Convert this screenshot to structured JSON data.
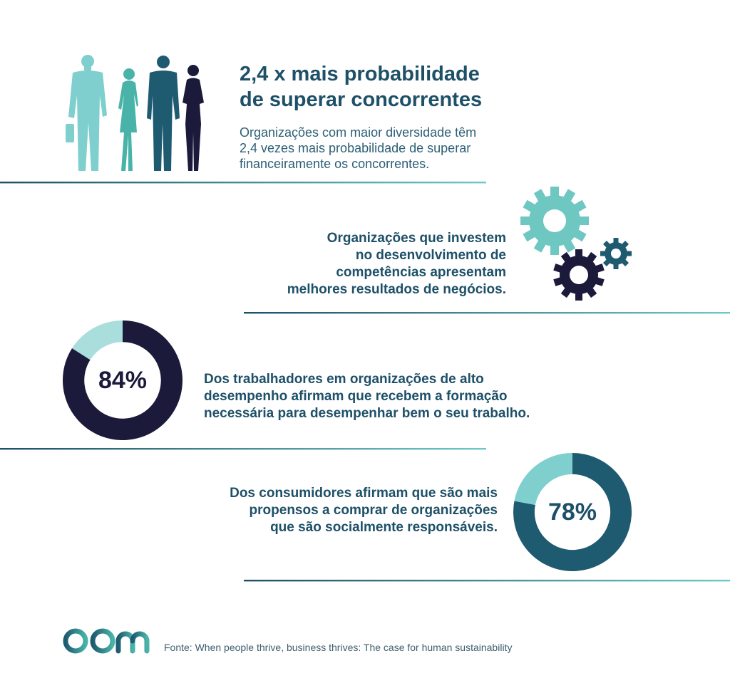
{
  "headline": {
    "title_line1": "2,4 x mais probabilidade",
    "title_line2": "de superar concorrentes",
    "description_line1": "Organizações com maior diversidade têm",
    "description_line2": "2,4 vezes mais probabilidade de superar",
    "description_line3": "financeiramente os concorrentes."
  },
  "competencies": {
    "line1": "Organizações que investem",
    "line2": "no desenvolvimento de",
    "line3": "competências apresentam",
    "line4": "melhores resultados de negócios."
  },
  "training": {
    "line1": "Dos trabalhadores em organizações de alto",
    "line2": "desempenho afirmam que recebem a formação",
    "line3": "necessária para desempenhar bem o seu trabalho."
  },
  "consumers": {
    "line1": "Dos consumidores afirmam que são mais",
    "line2": "propensos a comprar de organizações",
    "line3": "que são socialmente responsáveis."
  },
  "footer": {
    "logo_text": "abm",
    "source": "Fonte: When people thrive, business thrives: The case for human sustainability"
  },
  "colors": {
    "navy": "#1c1a3a",
    "teal_dark": "#1e5a70",
    "teal_light": "#7ecfcd",
    "teal_pale": "#a9dedd",
    "line_start": "#1e5068",
    "line_end": "#6fc9c4"
  },
  "icons": [
    "people-silhouettes-icon",
    "gears-icon",
    "abm-logo"
  ],
  "chart_data": [
    {
      "type": "pie",
      "label": "84%",
      "values": [
        84,
        16
      ],
      "colors": [
        "#1c1a3a",
        "#a9dedd"
      ]
    },
    {
      "type": "pie",
      "label": "78%",
      "values": [
        78,
        22
      ],
      "colors": [
        "#1e5a70",
        "#7ecfcd"
      ]
    }
  ]
}
